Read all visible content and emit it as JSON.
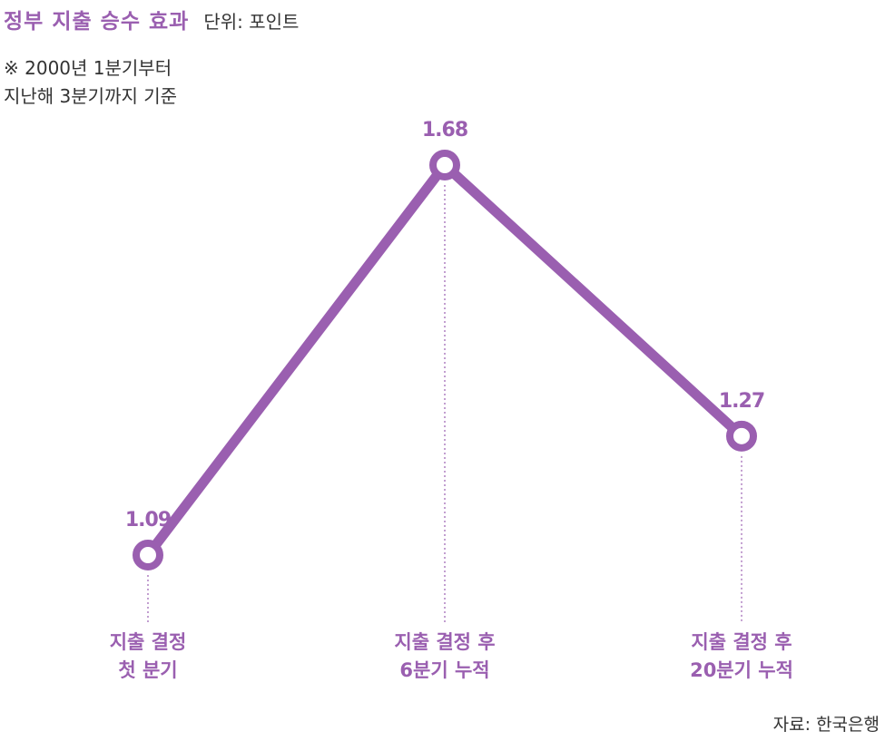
{
  "header": {
    "title": "정부 지출 승수 효과",
    "unit": "단위: 포인트"
  },
  "note": {
    "line1": "※ 2000년 1분기부터",
    "line2": "지난해 3분기까지 기준"
  },
  "source": "자료: 한국은행",
  "colors": {
    "accent": "#9a5fb0",
    "text": "#222222",
    "marker_fill": "#ffffff"
  },
  "chart_data": {
    "type": "line",
    "title": "정부 지출 승수 효과",
    "subtitle": "단위: 포인트",
    "xlabel": "",
    "ylabel": "",
    "categories": [
      [
        "지출 결정",
        "첫 분기"
      ],
      [
        "지출 결정 후",
        "6분기 누적"
      ],
      [
        "지출 결정 후",
        "20분기 누적"
      ]
    ],
    "series": [
      {
        "values": [
          1.09,
          1.68,
          1.27
        ],
        "data_labels": [
          "1.09",
          "1.68",
          "1.27"
        ]
      }
    ],
    "ylim": [
      0.9,
      1.8
    ],
    "grid": false,
    "legend": "none",
    "drop_lines": "dotted"
  }
}
